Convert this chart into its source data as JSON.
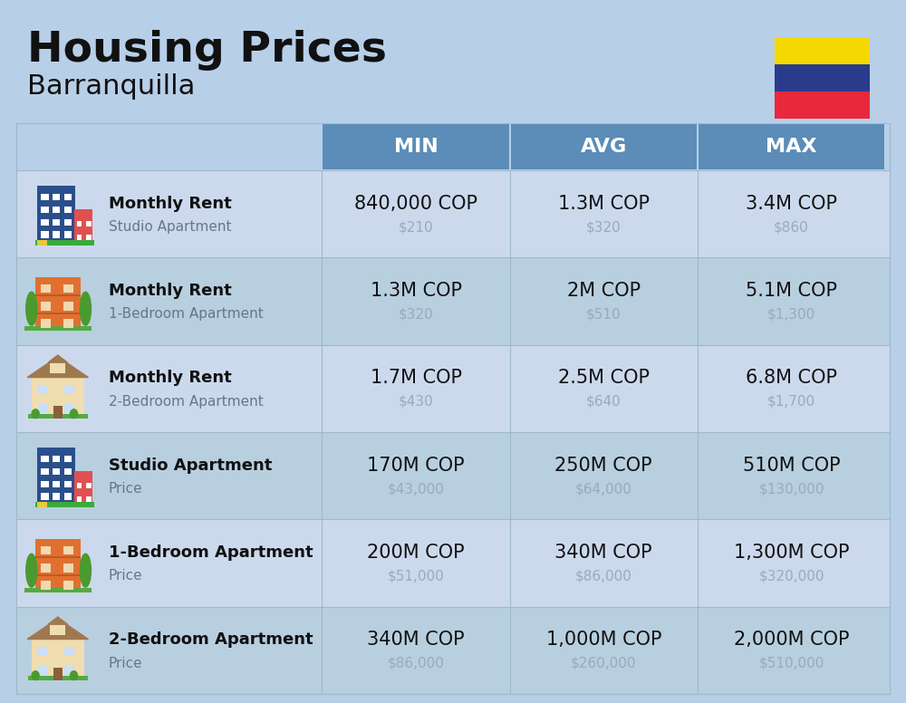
{
  "title": "Housing Prices",
  "subtitle": "Barranquilla",
  "background_color": "#b8cfe8",
  "header_color": "#5b8db8",
  "header_text_color": "#ffffff",
  "row_colors": [
    "#ccd9ed",
    "#b8cfe0"
  ],
  "rows": [
    {
      "label1": "Monthly Rent",
      "label2": "Studio Apartment",
      "icon_type": "blue_tower",
      "min_cop": "840,000 COP",
      "min_usd": "$210",
      "avg_cop": "1.3M COP",
      "avg_usd": "$320",
      "max_cop": "3.4M COP",
      "max_usd": "$860"
    },
    {
      "label1": "Monthly Rent",
      "label2": "1-Bedroom Apartment",
      "icon_type": "orange_apt",
      "min_cop": "1.3M COP",
      "min_usd": "$320",
      "avg_cop": "2M COP",
      "avg_usd": "$510",
      "max_cop": "5.1M COP",
      "max_usd": "$1,300"
    },
    {
      "label1": "Monthly Rent",
      "label2": "2-Bedroom Apartment",
      "icon_type": "beige_house",
      "min_cop": "1.7M COP",
      "min_usd": "$430",
      "avg_cop": "2.5M COP",
      "avg_usd": "$640",
      "max_cop": "6.8M COP",
      "max_usd": "$1,700"
    },
    {
      "label1": "Studio Apartment",
      "label2": "Price",
      "icon_type": "blue_tower",
      "min_cop": "170M COP",
      "min_usd": "$43,000",
      "avg_cop": "250M COP",
      "avg_usd": "$64,000",
      "max_cop": "510M COP",
      "max_usd": "$130,000"
    },
    {
      "label1": "1-Bedroom Apartment",
      "label2": "Price",
      "icon_type": "orange_apt",
      "min_cop": "200M COP",
      "min_usd": "$51,000",
      "avg_cop": "340M COP",
      "avg_usd": "$86,000",
      "max_cop": "1,300M COP",
      "max_usd": "$320,000"
    },
    {
      "label1": "2-Bedroom Apartment",
      "label2": "Price",
      "icon_type": "beige_house",
      "min_cop": "340M COP",
      "min_usd": "$86,000",
      "avg_cop": "1,000M COP",
      "avg_usd": "$260,000",
      "max_cop": "2,000M COP",
      "max_usd": "$510,000"
    }
  ],
  "flag_colors": [
    "#f5d800",
    "#2b3b8c",
    "#e8283c"
  ],
  "usd_color": "#9aabb8",
  "label2_color": "#667788",
  "sep_color": "#a0b8cc"
}
